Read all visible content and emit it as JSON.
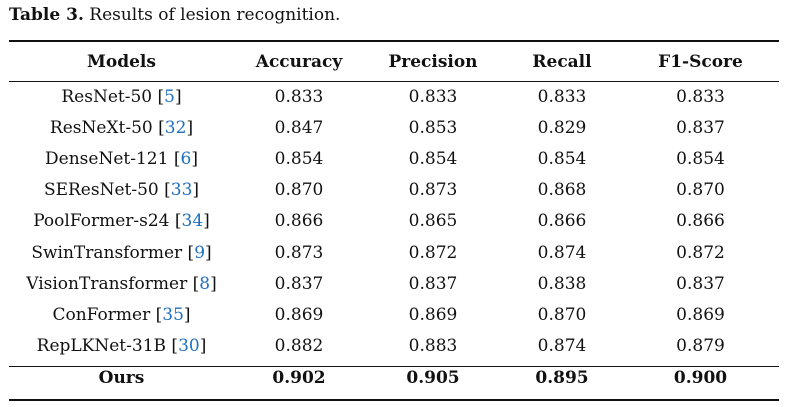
{
  "caption": {
    "label": "Table 3.",
    "text": " Results of lesion recognition."
  },
  "headers": [
    "Models",
    "Accuracy",
    "Precision",
    "Recall",
    "F1-Score"
  ],
  "rows": [
    {
      "model": "ResNet-50",
      "ref": "5",
      "accuracy": "0.833",
      "precision": "0.833",
      "recall": "0.833",
      "f1": "0.833"
    },
    {
      "model": "ResNeXt-50",
      "ref": "32",
      "accuracy": "0.847",
      "precision": "0.853",
      "recall": "0.829",
      "f1": "0.837"
    },
    {
      "model": "DenseNet-121",
      "ref": "6",
      "accuracy": "0.854",
      "precision": "0.854",
      "recall": "0.854",
      "f1": "0.854"
    },
    {
      "model": "SEResNet-50",
      "ref": "33",
      "accuracy": "0.870",
      "precision": "0.873",
      "recall": "0.868",
      "f1": "0.870"
    },
    {
      "model": "PoolFormer-s24",
      "ref": "34",
      "accuracy": "0.866",
      "precision": "0.865",
      "recall": "0.866",
      "f1": "0.866"
    },
    {
      "model": "SwinTransformer",
      "ref": "9",
      "accuracy": "0.873",
      "precision": "0.872",
      "recall": "0.874",
      "f1": "0.872"
    },
    {
      "model": "VisionTransformer",
      "ref": "8",
      "accuracy": "0.837",
      "precision": "0.837",
      "recall": "0.838",
      "f1": "0.837"
    },
    {
      "model": "ConFormer",
      "ref": "35",
      "accuracy": "0.869",
      "precision": "0.869",
      "recall": "0.870",
      "f1": "0.869"
    },
    {
      "model": "RepLKNet-31B",
      "ref": "30",
      "accuracy": "0.882",
      "precision": "0.883",
      "recall": "0.874",
      "f1": "0.879"
    }
  ],
  "ours": {
    "model": "Ours",
    "accuracy": "0.902",
    "precision": "0.905",
    "recall": "0.895",
    "f1": "0.900"
  },
  "colors": {
    "citation": "#1f6fbf",
    "text": "#111111"
  }
}
